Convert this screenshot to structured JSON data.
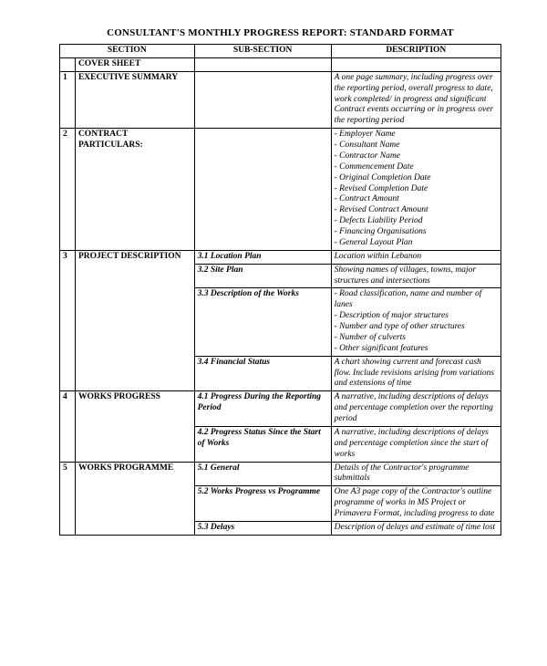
{
  "title": "CONSULTANT'S MONTHLY PROGRESS REPORT: STANDARD FORMAT",
  "headers": {
    "section": "SECTION",
    "sub": "SUB-SECTION",
    "desc": "DESCRIPTION"
  },
  "rows": [
    {
      "num": "",
      "section": "COVER SHEET",
      "sub": "",
      "desc": ""
    },
    {
      "num": "1",
      "section": "EXECUTIVE SUMMARY",
      "sub": "",
      "desc": "A one page summary, including progress over the reporting period, overall progress to date, work completed/ in progress and significant Contract events occurring or in progress over the reporting period"
    },
    {
      "num": "2",
      "section": "CONTRACT PARTICULARS:",
      "sub": "",
      "desc": "- Employer Name\n- Consultant Name\n- Contractor Name\n- Commencement Date\n- Original Completion Date\n- Revised Completion Date\n- Contract Amount\n- Revised Contract Amount\n- Defects Liability Period\n- Financing Organisations\n- General Layout Plan"
    },
    {
      "num": "3",
      "section": "PROJECT DESCRIPTION",
      "section_rowspan": 4,
      "sub": "3.1 Location Plan",
      "desc": "Location within Lebanon"
    },
    {
      "sub": "3.2 Site Plan",
      "desc": "Showing names of villages, towns, major structures and intersections"
    },
    {
      "sub": "3.3 Description of the Works",
      "desc": "- Road classification, name and number of lanes\n- Description of major structures\n- Number and type of other structures\n- Number of culverts\n- Other significant features"
    },
    {
      "sub": "3.4 Financial Status",
      "desc": "A chart showing current and forecast cash flow. Include revisions arising from variations and extensions of time"
    },
    {
      "num": "4",
      "section": "WORKS PROGRESS",
      "section_rowspan": 2,
      "sub": "4.1 Progress During the Reporting Period",
      "desc": "A narrative, including descriptions of delays and percentage completion over the reporting period"
    },
    {
      "sub": "4.2 Progress Status Since the Start of Works",
      "desc": "A narrative, including descriptions of delays and percentage completion since the start of works"
    },
    {
      "num": "5",
      "section": "WORKS PROGRAMME",
      "section_rowspan": 3,
      "sub": "5.1 General",
      "desc": "Details of the Contractor's programme submittals"
    },
    {
      "sub": "5.2 Works Progress vs Programme",
      "desc": "One A3 page copy of the Contractor's outline programme of works in MS Project or Primavera Format, including progress to date"
    },
    {
      "sub": "5.3 Delays",
      "desc": "Description of delays and estimate of time lost"
    }
  ]
}
